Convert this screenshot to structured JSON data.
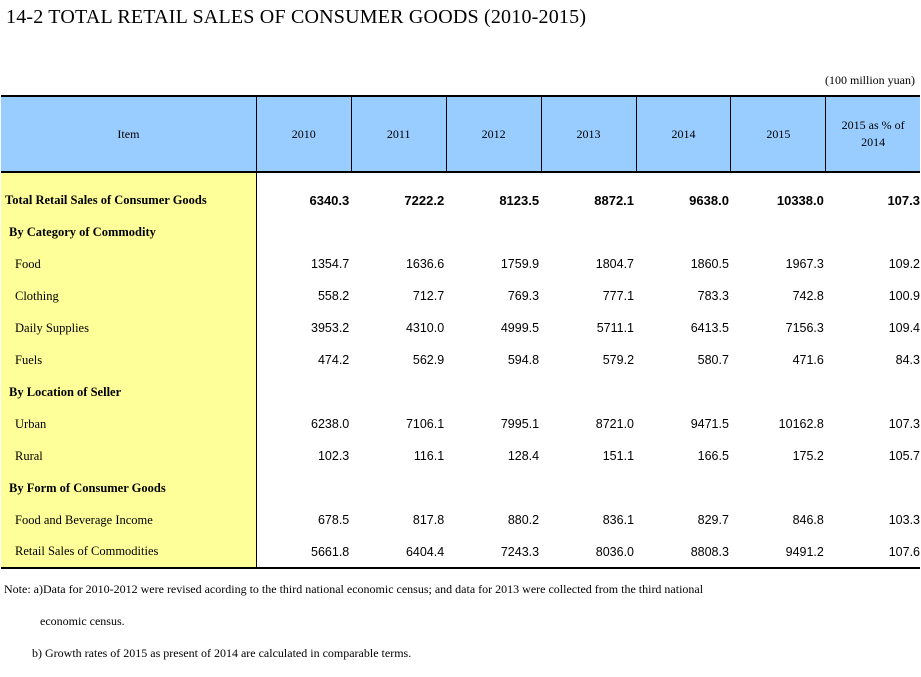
{
  "title": "14-2  TOTAL RETAIL SALES OF CONSUMER GOODS (2010-2015)",
  "unit": "(100 million yuan)",
  "table": {
    "headers": {
      "item": "Item",
      "y2010": "2010",
      "y2011": "2011",
      "y2012": "2012",
      "y2013": "2013",
      "y2014": "2014",
      "y2015": "2015",
      "pct_line1": "2015 as % of",
      "pct_line2": "2014"
    },
    "rows": {
      "total": {
        "label": "Total Retail Sales of Consumer Goods",
        "values": [
          "6340.3",
          "7222.2",
          "8123.5",
          "8872.1",
          "9638.0",
          "10338.0",
          "107.3"
        ]
      },
      "by_category": {
        "label": "By Category of Commodity"
      },
      "food": {
        "label": "Food",
        "values": [
          "1354.7",
          "1636.6",
          "1759.9",
          "1804.7",
          "1860.5",
          "1967.3",
          "109.2"
        ]
      },
      "clothing": {
        "label": "Clothing",
        "values": [
          "558.2",
          "712.7",
          "769.3",
          "777.1",
          "783.3",
          "742.8",
          "100.9"
        ]
      },
      "daily_supplies": {
        "label": "Daily Supplies",
        "values": [
          "3953.2",
          "4310.0",
          "4999.5",
          "5711.1",
          "6413.5",
          "7156.3",
          "109.4"
        ]
      },
      "fuels": {
        "label": "Fuels",
        "values": [
          "474.2",
          "562.9",
          "594.8",
          "579.2",
          "580.7",
          "471.6",
          "84.3"
        ]
      },
      "by_location": {
        "label": "By Location of Seller"
      },
      "urban": {
        "label": "Urban",
        "values": [
          "6238.0",
          "7106.1",
          "7995.1",
          "8721.0",
          "9471.5",
          "10162.8",
          "107.3"
        ]
      },
      "rural": {
        "label": "Rural",
        "values": [
          "102.3",
          "116.1",
          "128.4",
          "151.1",
          "166.5",
          "175.2",
          "105.7"
        ]
      },
      "by_form": {
        "label": "By Form of Consumer Goods"
      },
      "food_beverage": {
        "label": "Food and Beverage Income",
        "values": [
          "678.5",
          "817.8",
          "880.2",
          "836.1",
          "829.7",
          "846.8",
          "103.3"
        ]
      },
      "retail_commodities": {
        "label": "Retail Sales of Commodities",
        "values": [
          "5661.8",
          "6404.4",
          "7243.3",
          "8036.0",
          "8808.3",
          "9491.2",
          "107.6"
        ]
      }
    }
  },
  "notes": {
    "a_line1": "Note: a)Data for 2010-2012 were revised acording to the third national economic census; and data for 2013 were collected from the third national",
    "a_line2": "economic census.",
    "b": "b) Growth rates of 2015 as present of 2014 are calculated in comparable terms."
  }
}
